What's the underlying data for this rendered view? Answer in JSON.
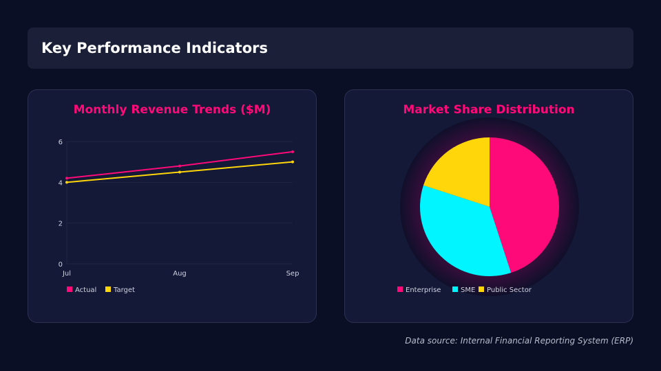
{
  "header": {
    "title": "Key Performance Indicators"
  },
  "footer": {
    "source": "Data source: Internal Financial Reporting System (ERP)"
  },
  "colors": {
    "actual": "#ff0a78",
    "target": "#ffd60a",
    "enterprise": "#ff0a78",
    "sme": "#00f5ff",
    "public": "#ffd60a"
  },
  "chart_data": [
    {
      "type": "line",
      "title": "Monthly Revenue Trends ($M)",
      "categories": [
        "Jul",
        "Aug",
        "Sep"
      ],
      "ylim": [
        0,
        6
      ],
      "yticks": [
        "0",
        "2",
        "4",
        "6"
      ],
      "grid": true,
      "legend": "bottom-left",
      "series": [
        {
          "name": "Actual",
          "values": [
            4.2,
            4.8,
            5.5
          ]
        },
        {
          "name": "Target",
          "values": [
            4.0,
            4.5,
            5.0
          ]
        }
      ]
    },
    {
      "type": "pie",
      "title": "Market Share Distribution",
      "legend": "bottom",
      "categories": [
        "Enterprise",
        "SME",
        "Public Sector"
      ],
      "values": [
        45,
        35,
        20
      ]
    }
  ]
}
